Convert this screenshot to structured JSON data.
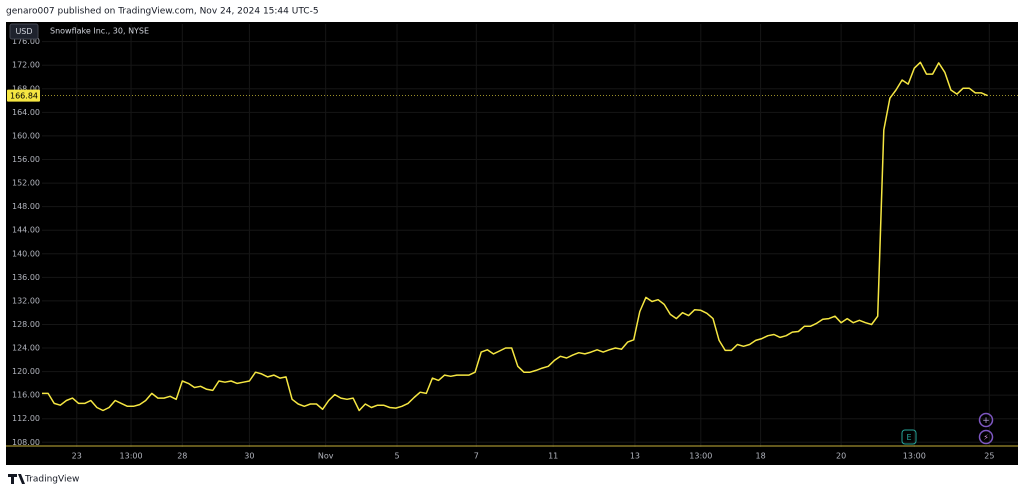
{
  "header": "genaro007 published on TradingView.com, Nov 24, 2024 15:44 UTC-5",
  "footer": "TradingView",
  "currency": "USD",
  "chart_data": {
    "type": "line",
    "title": "Snowflake Inc., 30, NYSE",
    "series": [
      {
        "name": "Snowflake Inc.",
        "color": "#f5e642",
        "values": [
          116.3,
          116.3,
          114.6,
          114.3,
          115.1,
          115.5,
          114.6,
          114.6,
          115.1,
          113.9,
          113.4,
          113.9,
          115.1,
          114.6,
          114.1,
          114.1,
          114.4,
          115.1,
          116.3,
          115.5,
          115.5,
          115.8,
          115.3,
          118.4,
          118.0,
          117.3,
          117.5,
          117.0,
          116.8,
          118.4,
          118.2,
          118.4,
          118.0,
          118.2,
          118.4,
          119.9,
          119.6,
          119.1,
          119.4,
          118.9,
          119.1,
          115.3,
          114.5,
          114.1,
          114.5,
          114.5,
          113.6,
          115.1,
          116.1,
          115.5,
          115.3,
          115.5,
          113.4,
          114.5,
          113.9,
          114.3,
          114.3,
          113.9,
          113.8,
          114.1,
          114.6,
          115.6,
          116.5,
          116.3,
          118.9,
          118.5,
          119.4,
          119.2,
          119.4,
          119.4,
          119.4,
          119.9,
          123.3,
          123.7,
          123.0,
          123.5,
          124.0,
          124.0,
          120.9,
          119.9,
          119.9,
          120.2,
          120.6,
          120.9,
          121.9,
          122.6,
          122.3,
          122.8,
          123.2,
          123.0,
          123.3,
          123.7,
          123.3,
          123.7,
          124.0,
          123.8,
          125.0,
          125.4,
          130.2,
          132.6,
          131.9,
          132.2,
          131.4,
          129.7,
          129.0,
          130.0,
          129.5,
          130.5,
          130.4,
          129.9,
          129.0,
          125.3,
          123.6,
          123.6,
          124.6,
          124.3,
          124.6,
          125.3,
          125.6,
          126.1,
          126.3,
          125.8,
          126.1,
          126.7,
          126.8,
          127.7,
          127.7,
          128.2,
          128.9,
          129.0,
          129.4,
          128.3,
          129.0,
          128.3,
          128.7,
          128.3,
          128.0,
          129.4,
          161.0,
          166.4,
          167.8,
          169.5,
          168.8,
          171.5,
          172.5,
          170.5,
          170.5,
          172.4,
          170.8,
          167.8,
          167.1,
          168.1,
          168.1,
          167.3,
          167.3,
          166.84
        ]
      }
    ],
    "last_price": {
      "value": 166.84,
      "label": "166.84"
    },
    "xlim": [
      0,
      160
    ],
    "xticks": [
      {
        "value": 5.7,
        "label": "23"
      },
      {
        "value": 14.6,
        "label": "13:00"
      },
      {
        "value": 23,
        "label": "28"
      },
      {
        "value": 34,
        "label": "30"
      },
      {
        "value": 46.5,
        "label": "Nov"
      },
      {
        "value": 58.2,
        "label": "5"
      },
      {
        "value": 71.2,
        "label": "7"
      },
      {
        "value": 83.8,
        "label": "11"
      },
      {
        "value": 97.2,
        "label": "13"
      },
      {
        "value": 108,
        "label": "13:00"
      },
      {
        "value": 117.8,
        "label": "18"
      },
      {
        "value": 131,
        "label": "20"
      },
      {
        "value": 143,
        "label": "13:00"
      },
      {
        "value": 155.3,
        "label": "25"
      }
    ],
    "ylim": [
      107.2,
      179
    ],
    "yticks": [
      {
        "value": 108,
        "label": "108.00"
      },
      {
        "value": 112,
        "label": "112.00"
      },
      {
        "value": 116,
        "label": "116.00"
      },
      {
        "value": 120,
        "label": "120.00"
      },
      {
        "value": 124,
        "label": "124.00"
      },
      {
        "value": 128,
        "label": "128.00"
      },
      {
        "value": 132,
        "label": "132.00"
      },
      {
        "value": 136,
        "label": "136.00"
      },
      {
        "value": 140,
        "label": "140.00"
      },
      {
        "value": 144,
        "label": "144.00"
      },
      {
        "value": 148,
        "label": "148.00"
      },
      {
        "value": 152,
        "label": "152.00"
      },
      {
        "value": 156,
        "label": "156.00"
      },
      {
        "value": 160,
        "label": "160.00"
      },
      {
        "value": 164,
        "label": "164.00"
      },
      {
        "value": 168,
        "label": "168.00"
      },
      {
        "value": 172,
        "label": "172.00"
      },
      {
        "value": 176,
        "label": "176.00"
      }
    ],
    "grid": true
  }
}
